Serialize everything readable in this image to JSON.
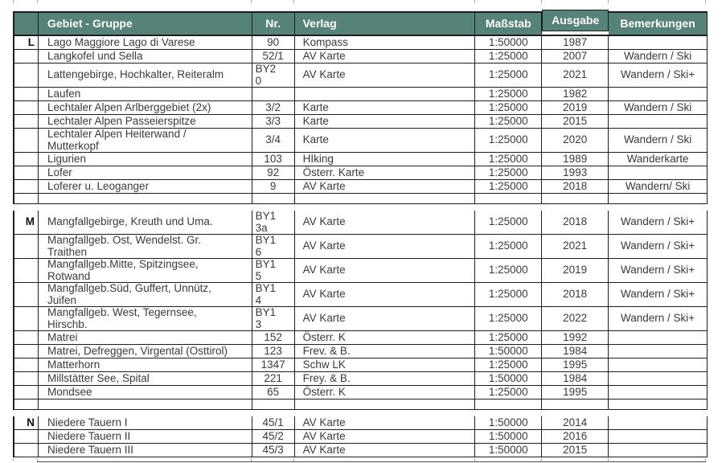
{
  "colors": {
    "header_bg": "#558379",
    "header_text": "#ffffff",
    "body_text": "#3a3a3a",
    "border": "#1d1d1d"
  },
  "table": {
    "columns": [
      {
        "key": "letter",
        "label": ""
      },
      {
        "key": "gebiet",
        "label": "Gebiet - Gruppe"
      },
      {
        "key": "nr",
        "label": "Nr."
      },
      {
        "key": "verlag",
        "label": "Verlag"
      },
      {
        "key": "massstab",
        "label": "Maßstab"
      },
      {
        "key": "ausgabe",
        "label": "Ausgabe"
      },
      {
        "key": "bemerkungen",
        "label": "Bemerkungen"
      }
    ],
    "rows": [
      {
        "letter": "L",
        "gebiet": "Lago Maggiore Lago di Varese",
        "nr": "90",
        "verlag": "Kompass",
        "massstab": "1:50000",
        "ausgabe": "1987",
        "bemerkungen": ""
      },
      {
        "letter": "",
        "gebiet": "Langkofel und Sella",
        "nr": "52/1",
        "verlag": "AV Karte",
        "massstab": "1:25000",
        "ausgabe": "2007",
        "bemerkungen": "Wandern / Ski"
      },
      {
        "letter": "",
        "gebiet": "Lattengebirge, Hochkalter, Reiteralm",
        "nr": "BY2\n0",
        "verlag": "AV Karte",
        "massstab": "1:25000",
        "ausgabe": "2021",
        "bemerkungen": "Wandern / Ski+"
      },
      {
        "letter": "",
        "gebiet": "Laufen",
        "nr": "",
        "verlag": "",
        "massstab": "1:25000",
        "ausgabe": "1982",
        "bemerkungen": ""
      },
      {
        "letter": "",
        "gebiet": "Lechtaler Alpen Arlberggebiet (2x)",
        "nr": "3/2",
        "verlag": "Karte",
        "massstab": "1:25000",
        "ausgabe": "2019",
        "bemerkungen": "Wandern / Ski"
      },
      {
        "letter": "",
        "gebiet": "Lechtaler Alpen Passeierspitze",
        "nr": "3/3",
        "verlag": "Karte",
        "massstab": "1:25000",
        "ausgabe": "2015",
        "bemerkungen": ""
      },
      {
        "letter": "",
        "gebiet": "Lechtaler Alpen Heiterwand /\nMutterkopf",
        "nr": "3/4",
        "verlag": "Karte",
        "massstab": "1:25000",
        "ausgabe": "2020",
        "bemerkungen": "Wandern / Ski"
      },
      {
        "letter": "",
        "gebiet": "Ligurien",
        "nr": "103",
        "verlag": "HIking",
        "massstab": "1:25000",
        "ausgabe": "1989",
        "bemerkungen": "Wanderkarte"
      },
      {
        "letter": "",
        "gebiet": "Lofer",
        "nr": "92",
        "verlag": "Österr. Karte",
        "massstab": "1:25000",
        "ausgabe": "1993",
        "bemerkungen": ""
      },
      {
        "letter": "",
        "gebiet": "Loferer u. Leoganger",
        "nr": "9",
        "verlag": "AV Karte",
        "massstab": "1:25000",
        "ausgabe": "2018",
        "bemerkungen": "Wandern/ Ski"
      },
      {
        "type": "separator"
      },
      {
        "letter": "M",
        "gebiet": "Mangfallgebirge, Kreuth und Uma.",
        "nr": "BY1\n3a",
        "verlag": "AV Karte",
        "massstab": "1:25000",
        "ausgabe": "2018",
        "bemerkungen": "Wandern / Ski+"
      },
      {
        "letter": "",
        "gebiet": "Mangfallgeb. Ost, Wendelst. Gr.\nTraithen",
        "nr": "BY1\n6",
        "verlag": "AV Karte",
        "massstab": "1:25000",
        "ausgabe": "2021",
        "bemerkungen": "Wandern / Ski+"
      },
      {
        "letter": "",
        "gebiet": "Mangfallgeb.Mitte, Spitzingsee,\nRotwand",
        "nr": "BY1\n5",
        "verlag": "AV Karte",
        "massstab": "1:25000",
        "ausgabe": "2019",
        "bemerkungen": "Wandern / Ski+"
      },
      {
        "letter": "",
        "gebiet": "Mangfallgeb.Süd, Guffert, Unnütz,\nJuifen",
        "nr": "BY1\n4",
        "verlag": "AV Karte",
        "massstab": "1:25000",
        "ausgabe": "2018",
        "bemerkungen": "Wandern / Ski+"
      },
      {
        "letter": "",
        "gebiet": "Mangfallgeb. West, Tegernsee,\nHirschb.",
        "nr": "BY1\n3",
        "verlag": "AV Karte",
        "massstab": "1:25000",
        "ausgabe": "2022",
        "bemerkungen": "Wandern / Ski+"
      },
      {
        "letter": "",
        "gebiet": "Matrei",
        "nr": "152",
        "verlag": "Österr. K",
        "massstab": "1:25000",
        "ausgabe": "1992",
        "bemerkungen": ""
      },
      {
        "letter": "",
        "gebiet": "Matrei, Defreggen, Virgental (Osttirol)",
        "nr": "123",
        "verlag": "Frev. & B.",
        "massstab": "1:50000",
        "ausgabe": "1984",
        "bemerkungen": ""
      },
      {
        "letter": "",
        "gebiet": "Matterhorn",
        "nr": "1347",
        "verlag": "Schw LK",
        "massstab": "1:25000",
        "ausgabe": "1995",
        "bemerkungen": ""
      },
      {
        "letter": "",
        "gebiet": "Millstätter See, Spital",
        "nr": "221",
        "verlag": "Frey. & B.",
        "massstab": "1:50000",
        "ausgabe": "1984",
        "bemerkungen": ""
      },
      {
        "letter": "",
        "gebiet": "Mondsee",
        "nr": "65",
        "verlag": "Österr. K",
        "massstab": "1:25000",
        "ausgabe": "1995",
        "bemerkungen": ""
      },
      {
        "type": "separator"
      },
      {
        "letter": "N",
        "gebiet": "Niedere Tauern I",
        "nr": "45/1",
        "verlag": "AV Karte",
        "massstab": "1:50000",
        "ausgabe": "2014",
        "bemerkungen": ""
      },
      {
        "letter": "",
        "gebiet": "Niedere Tauern II",
        "nr": "45/2",
        "verlag": "AV Karte",
        "massstab": "1:50000",
        "ausgabe": "2016",
        "bemerkungen": ""
      },
      {
        "letter": "",
        "gebiet": "Niedere Tauern III",
        "nr": "45/3",
        "verlag": "AV Karte",
        "massstab": "1:50000",
        "ausgabe": "2015",
        "bemerkungen": ""
      }
    ]
  }
}
